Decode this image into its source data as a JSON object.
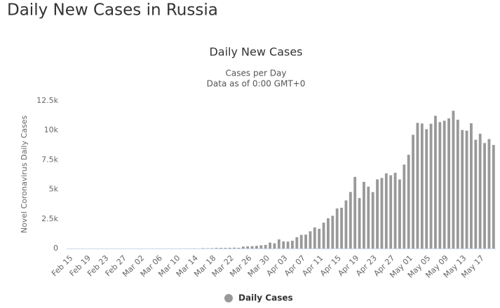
{
  "page_title": "Daily New Cases in Russia",
  "chart_data": {
    "type": "bar",
    "title": "Daily New Cases",
    "subtitle": [
      "Cases per Day",
      "Data as of 0:00 GMT+0"
    ],
    "y_label": "Novel Coronavirus Daily Cases",
    "categories": [
      "Feb 15",
      null,
      null,
      null,
      "Feb 19",
      null,
      null,
      null,
      "Feb 23",
      null,
      null,
      null,
      "Feb 27",
      null,
      null,
      null,
      "Mar 02",
      null,
      null,
      null,
      "Mar 06",
      null,
      null,
      null,
      "Mar 10",
      null,
      null,
      null,
      "Mar 14",
      null,
      null,
      null,
      "Mar 18",
      null,
      null,
      null,
      "Mar 22",
      null,
      null,
      null,
      "Mar 26",
      null,
      null,
      null,
      "Mar 30",
      null,
      null,
      null,
      "Apr 03",
      null,
      null,
      null,
      "Apr 07",
      null,
      null,
      null,
      "Apr 11",
      null,
      null,
      null,
      "Apr 15",
      null,
      null,
      null,
      "Apr 19",
      null,
      null,
      null,
      "Apr 23",
      null,
      null,
      null,
      "Apr 27",
      null,
      null,
      null,
      "May 01",
      null,
      null,
      null,
      "May 05",
      null,
      null,
      null,
      "May 09",
      null,
      null,
      null,
      "May 13",
      null,
      null,
      null,
      "May 17",
      null,
      null,
      null
    ],
    "series": [
      {
        "name": "Daily Cases",
        "color": "#999999",
        "values": [
          0,
          0,
          0,
          0,
          0,
          0,
          0,
          0,
          0,
          0,
          0,
          0,
          0,
          0,
          0,
          0,
          1,
          0,
          0,
          1,
          6,
          3,
          0,
          4,
          3,
          8,
          6,
          11,
          14,
          4,
          30,
          21,
          33,
          52,
          54,
          53,
          61,
          71,
          57,
          163,
          182,
          196,
          228,
          270,
          302,
          501,
          440,
          771,
          601,
          582,
          658,
          954,
          1154,
          1175,
          1459,
          1786,
          1667,
          2186,
          2558,
          2774,
          3388,
          3448,
          4070,
          4785,
          6060,
          4268,
          5642,
          5236,
          4774,
          5849,
          5966,
          6361,
          6198,
          6411,
          5841,
          7099,
          7933,
          9623,
          10633,
          10581,
          10102,
          10559,
          11231,
          10699,
          10817,
          11012,
          11656,
          10899,
          10028,
          9974,
          10598,
          9200,
          9709,
          8926,
          9263,
          8764
        ]
      }
    ],
    "ylim": [
      0,
      12500
    ],
    "yticks": [
      0,
      {
        "value": 2500,
        "label": "2.5k"
      },
      {
        "value": 5000,
        "label": "5k"
      },
      {
        "value": 7500,
        "label": "7.5k"
      },
      {
        "value": 10000,
        "label": "10k"
      },
      {
        "value": 12500,
        "label": "12.5k"
      }
    ],
    "grid": false
  }
}
